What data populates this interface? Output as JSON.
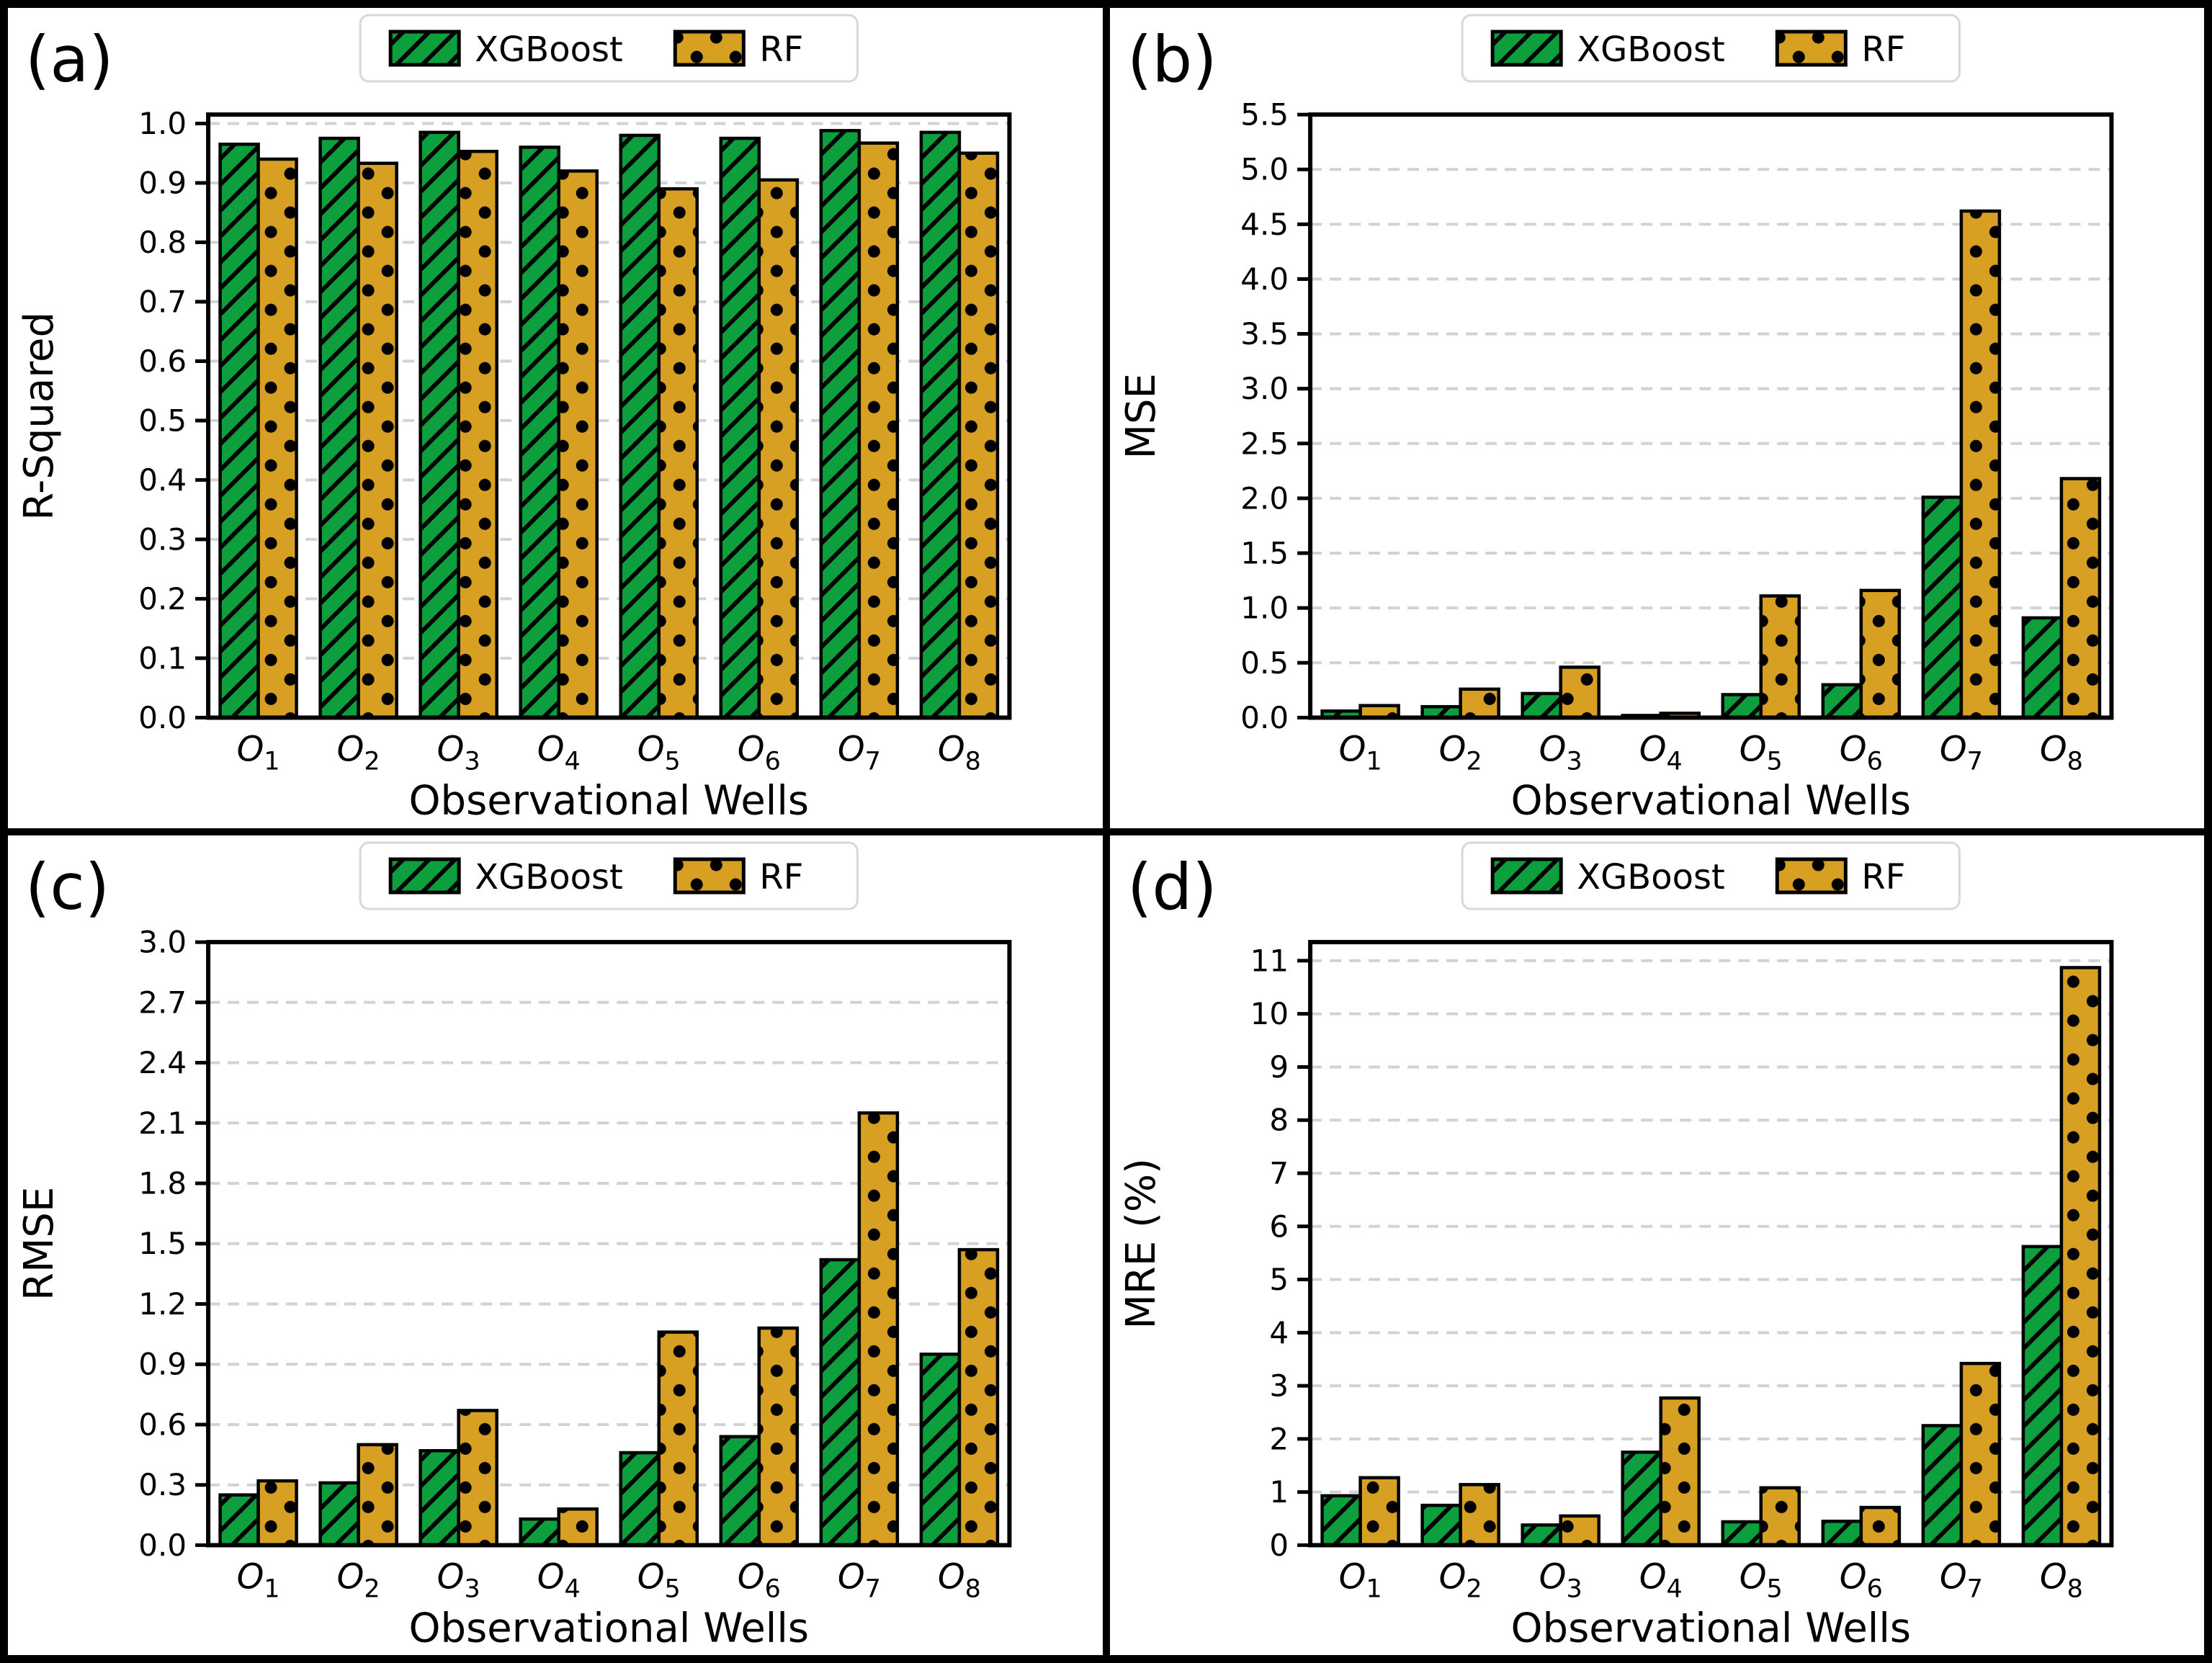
{
  "figure": {
    "background": "#ffffff",
    "frame_color": "#000000",
    "grid_color": "#d2d2d2",
    "bar_edge_color": "#000000",
    "legend": {
      "position": "upper center",
      "items": [
        {
          "label": "XGBoost",
          "color": "#0d9f3d",
          "hatch": "diagonal"
        },
        {
          "label": "RF",
          "color": "#d7a023",
          "hatch": "dots"
        }
      ]
    }
  },
  "chart_data": [
    {
      "type": "bar",
      "id": "a",
      "panel_label": "(a)",
      "ylabel": "R-Squared",
      "xlabel": "Observational Wells",
      "categories": [
        "O1",
        "O2",
        "O3",
        "O4",
        "O5",
        "O6",
        "O7",
        "O8"
      ],
      "series": [
        {
          "name": "XGBoost",
          "values": [
            0.965,
            0.975,
            0.985,
            0.96,
            0.98,
            0.975,
            0.988,
            0.985
          ]
        },
        {
          "name": "RF",
          "values": [
            0.94,
            0.933,
            0.953,
            0.92,
            0.89,
            0.905,
            0.967,
            0.95
          ]
        }
      ],
      "ylim": [
        0,
        1.015
      ],
      "yticks": {
        "max": 1.0,
        "step": 0.1,
        "decimals": 1
      },
      "grid": true,
      "legend_position": "upper center"
    },
    {
      "type": "bar",
      "id": "b",
      "panel_label": "(b)",
      "ylabel": "MSE",
      "xlabel": "Observational Wells",
      "categories": [
        "O1",
        "O2",
        "O3",
        "O4",
        "O5",
        "O6",
        "O7",
        "O8"
      ],
      "series": [
        {
          "name": "XGBoost",
          "values": [
            0.06,
            0.1,
            0.22,
            0.02,
            0.21,
            0.3,
            2.01,
            0.91
          ]
        },
        {
          "name": "RF",
          "values": [
            0.11,
            0.26,
            0.46,
            0.04,
            1.11,
            1.16,
            4.62,
            2.18
          ]
        }
      ],
      "ylim": [
        0,
        5.5
      ],
      "yticks": {
        "max": 5.5,
        "step": 0.5,
        "decimals": 1
      },
      "grid": true,
      "legend_position": "upper center"
    },
    {
      "type": "bar",
      "id": "c",
      "panel_label": "(c)",
      "ylabel": "RMSE",
      "xlabel": "Observational Wells",
      "categories": [
        "O1",
        "O2",
        "O3",
        "O4",
        "O5",
        "O6",
        "O7",
        "O8"
      ],
      "series": [
        {
          "name": "XGBoost",
          "values": [
            0.25,
            0.31,
            0.47,
            0.13,
            0.46,
            0.54,
            1.42,
            0.95
          ]
        },
        {
          "name": "RF",
          "values": [
            0.32,
            0.5,
            0.67,
            0.18,
            1.06,
            1.08,
            2.15,
            1.47
          ]
        }
      ],
      "ylim": [
        0,
        3.0
      ],
      "yticks": {
        "max": 3.0,
        "step": 0.3,
        "decimals": 1
      },
      "grid": true,
      "legend_position": "upper center"
    },
    {
      "type": "bar",
      "id": "d",
      "panel_label": "(d)",
      "ylabel": "MRE (%)",
      "xlabel": "Observational Wells",
      "categories": [
        "O1",
        "O2",
        "O3",
        "O4",
        "O5",
        "O6",
        "O7",
        "O8"
      ],
      "series": [
        {
          "name": "XGBoost",
          "values": [
            0.93,
            0.75,
            0.38,
            1.75,
            0.44,
            0.45,
            2.25,
            5.62
          ]
        },
        {
          "name": "RF",
          "values": [
            1.27,
            1.14,
            0.55,
            2.77,
            1.08,
            0.71,
            3.42,
            10.87
          ]
        }
      ],
      "ylim": [
        0,
        11.35
      ],
      "yticks": {
        "max": 11,
        "step": 1,
        "decimals": 0
      },
      "grid": true,
      "legend_position": "upper center"
    }
  ]
}
